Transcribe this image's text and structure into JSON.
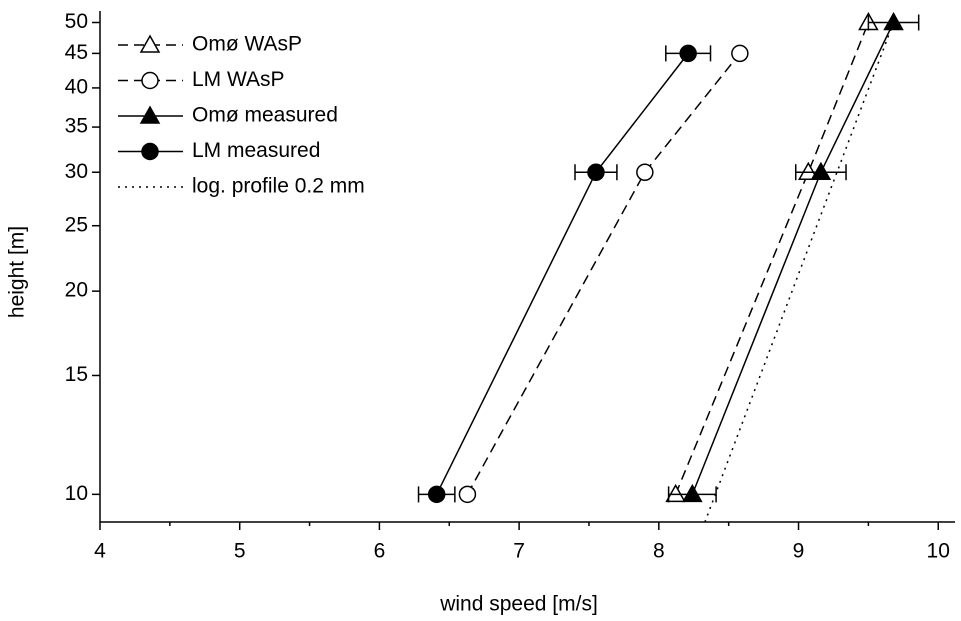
{
  "chart_data": {
    "type": "line",
    "xlabel": "wind speed [m/s]",
    "ylabel": "height [m]",
    "xlim": [
      4,
      10.12
    ],
    "xticks": [
      4,
      5,
      6,
      7,
      8,
      9,
      10
    ],
    "xminorticks": [
      4.5,
      5.5,
      6.5,
      7.5,
      8.5,
      9.5
    ],
    "ylim": [
      9.1,
      52
    ],
    "ylog": true,
    "yticks": [
      10,
      15,
      20,
      25,
      30,
      35,
      40,
      45,
      50
    ],
    "legend": "upper left",
    "series": [
      {
        "name": "Omø WAsP",
        "color": "#000000",
        "dash": "dashed",
        "marker": "triangle-open",
        "x": [
          8.12,
          9.07,
          9.5
        ],
        "y": [
          10,
          30,
          50
        ]
      },
      {
        "name": "LM WAsP",
        "color": "#000000",
        "dash": "dashed",
        "marker": "circle-open",
        "x": [
          6.63,
          7.9,
          8.58
        ],
        "y": [
          10,
          30,
          45
        ]
      },
      {
        "name": "Omø measured",
        "color": "#000000",
        "dash": "solid",
        "marker": "triangle-filled",
        "x": [
          8.24,
          9.16,
          9.68
        ],
        "y": [
          10,
          30,
          50
        ],
        "xerr": [
          0.17,
          0.18,
          0.18
        ]
      },
      {
        "name": "LM measured",
        "color": "#000000",
        "dash": "solid",
        "marker": "circle-filled",
        "x": [
          6.41,
          7.55,
          8.21
        ],
        "y": [
          10,
          30,
          45
        ],
        "xerr": [
          0.13,
          0.15,
          0.16
        ]
      },
      {
        "name": "log. profile 0.2 mm",
        "color": "#000000",
        "dash": "dotted",
        "marker": "none",
        "x": [
          8.33,
          9.68
        ],
        "y": [
          9.1,
          50
        ]
      }
    ]
  }
}
